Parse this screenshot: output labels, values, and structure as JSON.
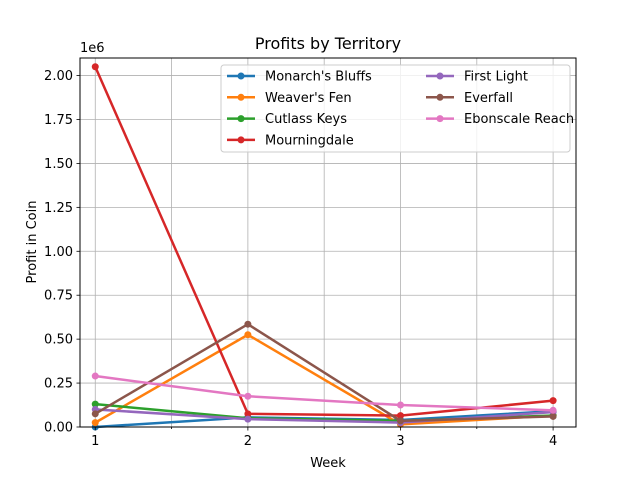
{
  "chart_data": {
    "type": "line",
    "title": "Profits by Territory",
    "xlabel": "Week",
    "ylabel": "Profit in Coin",
    "offset_text": "1e6",
    "x": [
      1,
      2,
      3,
      4
    ],
    "x_ticks": [
      1,
      2,
      3,
      4
    ],
    "xlim": [
      0.9,
      4.15
    ],
    "y_ticks": [
      "0.00",
      "0.25",
      "0.50",
      "0.75",
      "1.00",
      "1.25",
      "1.50",
      "1.75",
      "2.00"
    ],
    "y_tick_values": [
      0,
      250000,
      500000,
      750000,
      1000000,
      1250000,
      1500000,
      1750000,
      2000000
    ],
    "ylim": [
      0,
      2100000
    ],
    "grid": true,
    "legend_position": "upper-right",
    "series": [
      {
        "name": "Monarch's Bluffs",
        "color": "#1f77b4",
        "values": [
          0,
          55000,
          40000,
          90000
        ]
      },
      {
        "name": "Weaver's Fen",
        "color": "#ff7f0e",
        "values": [
          25000,
          525000,
          15000,
          65000
        ]
      },
      {
        "name": "Cutlass Keys",
        "color": "#2ca02c",
        "values": [
          130000,
          50000,
          35000,
          65000
        ]
      },
      {
        "name": "Mourningdale",
        "color": "#d62728",
        "values": [
          2050000,
          75000,
          65000,
          150000
        ]
      },
      {
        "name": "First Light",
        "color": "#9467bd",
        "values": [
          100000,
          45000,
          25000,
          85000
        ]
      },
      {
        "name": "Everfall",
        "color": "#8c564b",
        "values": [
          75000,
          585000,
          35000,
          60000
        ]
      },
      {
        "name": "Ebonscale Reach",
        "color": "#e377c2",
        "values": [
          290000,
          175000,
          125000,
          95000
        ]
      }
    ]
  }
}
